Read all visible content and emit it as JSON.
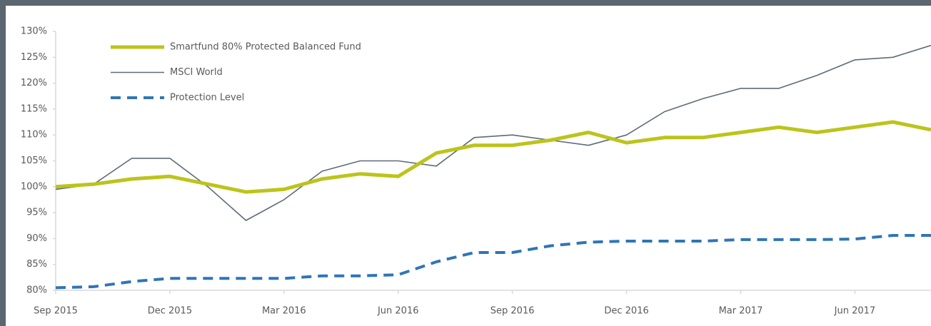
{
  "chart_data": {
    "type": "line",
    "x": [
      "2015-09",
      "2015-10",
      "2015-11",
      "2015-12",
      "2016-01",
      "2016-02",
      "2016-03",
      "2016-04",
      "2016-05",
      "2016-06",
      "2016-07",
      "2016-08",
      "2016-09",
      "2016-10",
      "2016-11",
      "2016-12",
      "2017-01",
      "2017-02",
      "2017-03",
      "2017-04",
      "2017-05",
      "2017-06",
      "2017-07",
      "2017-08"
    ],
    "series": [
      {
        "name": "Smartfund 80% Protected Balanced Fund",
        "color": "#bcc41b",
        "width": 5,
        "dashed": false,
        "values": [
          100,
          100.5,
          101.5,
          102,
          100.5,
          99,
          99.5,
          101.5,
          102.5,
          102,
          106.5,
          108,
          108,
          109,
          110.5,
          108.5,
          109.5,
          109.5,
          110.5,
          111.5,
          110.5,
          111.5,
          112.5,
          111
        ]
      },
      {
        "name": "MSCI World",
        "color": "#5d6b78",
        "width": 1.6,
        "dashed": false,
        "values": [
          99.5,
          100.5,
          105.5,
          105.5,
          100,
          93.5,
          97.5,
          103,
          105,
          105,
          104,
          109.5,
          110,
          109,
          108,
          110,
          114.5,
          117,
          119,
          119,
          121.5,
          124.5,
          125,
          127.3
        ]
      },
      {
        "name": "Protection Level",
        "color": "#2e75b6",
        "width": 4,
        "dashed": true,
        "values": [
          80.5,
          80.7,
          81.7,
          82.3,
          82.3,
          82.3,
          82.3,
          82.8,
          82.8,
          83,
          85.5,
          87.3,
          87.3,
          88.6,
          89.3,
          89.5,
          89.5,
          89.5,
          89.8,
          89.8,
          89.8,
          89.9,
          90.6,
          90.6
        ]
      }
    ],
    "xlim": [
      "2015-09",
      "2017-08"
    ],
    "xticks": [
      {
        "value": "2015-09",
        "label": "Sep 2015"
      },
      {
        "value": "2015-12",
        "label": "Dec 2015"
      },
      {
        "value": "2016-03",
        "label": "Mar 2016"
      },
      {
        "value": "2016-06",
        "label": "Jun 2016"
      },
      {
        "value": "2016-09",
        "label": "Sep 2016"
      },
      {
        "value": "2016-12",
        "label": "Dec 2016"
      },
      {
        "value": "2017-03",
        "label": "Mar 2017"
      },
      {
        "value": "2017-06",
        "label": "Jun 2017"
      }
    ],
    "ylim": [
      80,
      130
    ],
    "yticks": [
      {
        "value": 80,
        "label": "80%"
      },
      {
        "value": 85,
        "label": "85%"
      },
      {
        "value": 90,
        "label": "90%"
      },
      {
        "value": 95,
        "label": "95%"
      },
      {
        "value": 100,
        "label": "100%"
      },
      {
        "value": 105,
        "label": "105%"
      },
      {
        "value": 110,
        "label": "110%"
      },
      {
        "value": 115,
        "label": "115%"
      },
      {
        "value": 120,
        "label": "120%"
      },
      {
        "value": 125,
        "label": "125%"
      },
      {
        "value": 130,
        "label": "130%"
      }
    ],
    "grid": false,
    "legend": "upper left"
  }
}
